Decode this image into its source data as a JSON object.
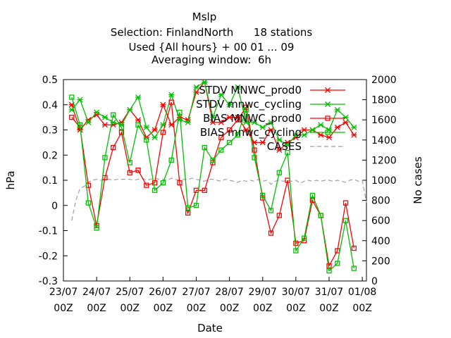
{
  "chart_data": {
    "type": "line",
    "title_lines": [
      "Mslp",
      "Selection: FinlandNorth      18 stations",
      "Used {All hours} + 00 01 ... 09",
      "Averaging window:  6h"
    ],
    "xlabel": "Date",
    "ylabel": "hPa",
    "y2label": "No cases",
    "ylim": [
      -0.3,
      0.5
    ],
    "y2lim": [
      0,
      2000
    ],
    "yticks": [
      "0.5",
      "0.4",
      "0.3",
      "0.2",
      "0.1",
      "0",
      "-0.1",
      "-0.2",
      "-0.3"
    ],
    "y2ticks": [
      "2000",
      "1800",
      "1600",
      "1400",
      "1200",
      "1000",
      "800",
      "600",
      "400",
      "200",
      "0"
    ],
    "xticks": [
      {
        "top": "23/07",
        "bottom": "00Z",
        "t": 0
      },
      {
        "top": "24/07",
        "bottom": "00Z",
        "t": 24
      },
      {
        "top": "25/07",
        "bottom": "00Z",
        "t": 48
      },
      {
        "top": "26/07",
        "bottom": "00Z",
        "t": 72
      },
      {
        "top": "27/07",
        "bottom": "00Z",
        "t": 96
      },
      {
        "top": "28/07",
        "bottom": "00Z",
        "t": 120
      },
      {
        "top": "29/07",
        "bottom": "00Z",
        "t": 144
      },
      {
        "top": "30/07",
        "bottom": "00Z",
        "t": 168
      },
      {
        "top": "31/07",
        "bottom": "00Z",
        "t": 192
      },
      {
        "top": "01/08",
        "bottom": "00Z",
        "t": 216
      }
    ],
    "x_hours": [
      3,
      6,
      9,
      12,
      15,
      18,
      21,
      24,
      27,
      30,
      33,
      36,
      39,
      42,
      45,
      48,
      51,
      54,
      57,
      60,
      63,
      66,
      69,
      72,
      75,
      78,
      81,
      84,
      87,
      90,
      93,
      96,
      99,
      102,
      105,
      108,
      111,
      114,
      117,
      120,
      123,
      126,
      129,
      132,
      135,
      138,
      141,
      144,
      147,
      150,
      153,
      156,
      159,
      162,
      165,
      168,
      171,
      174,
      177,
      180,
      183,
      186,
      189,
      192,
      195,
      198,
      201,
      204,
      207,
      210,
      213,
      216
    ],
    "series": [
      {
        "name": "STDV MNWC_prod0",
        "color": "#ff0000",
        "marker": "x",
        "axis": "y",
        "values": [
          0.4,
          0.3,
          0.34,
          0.36,
          0.32,
          0.32,
          0.33,
          0.38,
          0.34,
          0.27,
          0.3,
          0.4,
          0.32,
          0.35,
          0.34,
          0.45,
          0.49,
          0.33,
          0.33,
          0.35,
          0.35,
          0.3,
          0.25,
          0.25,
          0.3,
          0.22,
          0.25,
          0.27,
          0.3,
          0.3,
          0.28,
          0.27,
          0.31,
          0.33,
          0.28
        ]
      },
      {
        "name": "STDV mnwc_cycling",
        "color": "#00c000",
        "marker": "x",
        "axis": "y",
        "values": [
          0.38,
          0.42,
          0.33,
          0.37,
          0.35,
          0.33,
          0.32,
          0.38,
          0.43,
          0.31,
          0.27,
          0.32,
          0.44,
          0.34,
          0.33,
          0.47,
          0.49,
          0.35,
          0.44,
          0.4,
          0.47,
          0.33,
          0.33,
          0.31,
          0.33,
          0.26,
          0.24,
          0.28,
          0.28,
          0.3,
          0.32,
          0.3,
          0.38,
          0.35,
          0.31
        ]
      },
      {
        "name": "BIAS MNWC_prod0",
        "color": "#ff0000",
        "marker": "square",
        "axis": "y",
        "x_start": 6,
        "values": [
          0.35,
          0.31,
          0.08,
          -0.08,
          0.11,
          0.23,
          0.29,
          0.13,
          0.14,
          0.08,
          0.09,
          0.29,
          0.41,
          0.09,
          -0.03,
          0.06,
          0.06,
          0.17,
          0.27,
          0.3,
          0.34,
          0.39,
          0.22,
          0.03,
          -0.11,
          -0.04,
          0.1,
          -0.15,
          -0.14,
          0.02,
          -0.04,
          -0.24,
          -0.18,
          0.01,
          -0.17
        ]
      },
      {
        "name": "BIAS mnwc_cycling",
        "color": "#00c000",
        "marker": "square",
        "axis": "y",
        "x_start": 6,
        "values": [
          0.43,
          0.32,
          0.01,
          -0.09,
          0.19,
          0.36,
          0.31,
          0.17,
          0.32,
          0.26,
          0.06,
          0.09,
          0.18,
          0.37,
          -0.01,
          0.0,
          0.23,
          0.18,
          0.22,
          0.25,
          0.28,
          0.38,
          0.19,
          0.04,
          -0.02,
          0.13,
          0.21,
          -0.18,
          -0.13,
          0.04,
          -0.04,
          -0.26,
          -0.23,
          -0.06,
          -0.25
        ]
      },
      {
        "name": "CASES",
        "color": "#a0a0a0",
        "dash": "6,4",
        "axis": "y2",
        "x": [
          6,
          9,
          12,
          15,
          18,
          21,
          24,
          27,
          30,
          33,
          36,
          39,
          42,
          45,
          48,
          51,
          54,
          57,
          60,
          63,
          66,
          69,
          72,
          75,
          78,
          81,
          84,
          87,
          90,
          93,
          96,
          99,
          102,
          105,
          108,
          111,
          114,
          117,
          120,
          123,
          126,
          129,
          132,
          135,
          138,
          141,
          144,
          147,
          150,
          153,
          156,
          159,
          162,
          165,
          168,
          171,
          174,
          177,
          180,
          183,
          186,
          189,
          192,
          195,
          198,
          201,
          204,
          207,
          210,
          213,
          216,
          219
        ],
        "values": [
          600,
          800,
          920,
          940,
          980,
          1000,
          1010,
          1000,
          1010,
          1010,
          1000,
          1010,
          1010,
          1010,
          1010,
          1000,
          1010,
          1020,
          1000,
          1010,
          1020,
          1010,
          1010,
          1000,
          1020,
          1010,
          1000,
          1010,
          1010,
          1020,
          1010,
          1000,
          990,
          1010,
          1010,
          1000,
          990,
          1010,
          1000,
          990,
          980,
          1000,
          990,
          1000,
          990,
          1010,
          990,
          1000,
          960,
          990,
          1000,
          990,
          1000,
          990,
          1000,
          970,
          990,
          1000,
          990,
          1000,
          990,
          1000,
          1000,
          990,
          1000,
          990,
          980,
          1000,
          1010,
          990,
          1000,
          780
        ]
      }
    ],
    "legend_position": "top-right"
  }
}
